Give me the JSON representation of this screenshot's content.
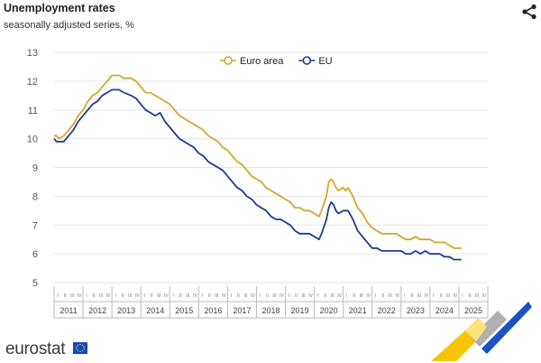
{
  "header": {
    "title": "Unemployment rates",
    "subtitle": "seasonally adjusted series, %"
  },
  "toolbar": {
    "share_icon": "share-icon"
  },
  "footer": {
    "logo_text": "eurostat",
    "flag_icon": "eu-flag-icon"
  },
  "colors": {
    "euro_area": "#d4a82e",
    "eu": "#1f3a93",
    "grid": "#e6e6e6",
    "axis_text": "#555555"
  },
  "chart_data": {
    "type": "line",
    "title": "Unemployment rates",
    "subtitle": "seasonally adjusted series, %",
    "xlabel": "",
    "ylabel": "",
    "ylim": [
      5,
      13
    ],
    "yticks": [
      5,
      6,
      7,
      8,
      9,
      10,
      11,
      12,
      13
    ],
    "grid": true,
    "legend": "top-center",
    "x_years": [
      "2011",
      "2012",
      "2013",
      "2014",
      "2015",
      "2016",
      "2017",
      "2018",
      "2019",
      "2020",
      "2021",
      "2022",
      "2023",
      "2024",
      "2025"
    ],
    "quarter_labels": [
      "I",
      "II",
      "III",
      "IV"
    ],
    "x_start": "2011-01",
    "series": [
      {
        "name": "Euro area",
        "color": "#d4a82e",
        "points": [
          [
            "2011-01",
            10.1
          ],
          [
            "2011-02",
            10.1
          ],
          [
            "2011-03",
            10.0
          ],
          [
            "2011-05",
            10.1
          ],
          [
            "2011-07",
            10.3
          ],
          [
            "2011-09",
            10.5
          ],
          [
            "2011-11",
            10.8
          ],
          [
            "2012-01",
            11.0
          ],
          [
            "2012-03",
            11.3
          ],
          [
            "2012-05",
            11.5
          ],
          [
            "2012-07",
            11.6
          ],
          [
            "2012-09",
            11.8
          ],
          [
            "2012-11",
            12.0
          ],
          [
            "2013-01",
            12.2
          ],
          [
            "2013-04",
            12.2
          ],
          [
            "2013-06",
            12.1
          ],
          [
            "2013-09",
            12.1
          ],
          [
            "2013-11",
            12.0
          ],
          [
            "2014-01",
            11.8
          ],
          [
            "2014-03",
            11.6
          ],
          [
            "2014-05",
            11.6
          ],
          [
            "2014-07",
            11.5
          ],
          [
            "2014-09",
            11.4
          ],
          [
            "2014-11",
            11.3
          ],
          [
            "2015-01",
            11.2
          ],
          [
            "2015-03",
            11.0
          ],
          [
            "2015-05",
            10.8
          ],
          [
            "2015-07",
            10.7
          ],
          [
            "2015-09",
            10.6
          ],
          [
            "2015-11",
            10.5
          ],
          [
            "2016-01",
            10.4
          ],
          [
            "2016-03",
            10.3
          ],
          [
            "2016-05",
            10.1
          ],
          [
            "2016-07",
            10.0
          ],
          [
            "2016-09",
            9.9
          ],
          [
            "2016-11",
            9.7
          ],
          [
            "2017-01",
            9.6
          ],
          [
            "2017-03",
            9.4
          ],
          [
            "2017-05",
            9.2
          ],
          [
            "2017-07",
            9.1
          ],
          [
            "2017-09",
            8.9
          ],
          [
            "2017-11",
            8.7
          ],
          [
            "2018-01",
            8.6
          ],
          [
            "2018-03",
            8.5
          ],
          [
            "2018-05",
            8.3
          ],
          [
            "2018-07",
            8.2
          ],
          [
            "2018-09",
            8.1
          ],
          [
            "2018-11",
            8.0
          ],
          [
            "2019-01",
            7.9
          ],
          [
            "2019-03",
            7.8
          ],
          [
            "2019-05",
            7.6
          ],
          [
            "2019-07",
            7.6
          ],
          [
            "2019-09",
            7.5
          ],
          [
            "2019-11",
            7.5
          ],
          [
            "2020-01",
            7.4
          ],
          [
            "2020-03",
            7.3
          ],
          [
            "2020-04",
            7.5
          ],
          [
            "2020-06",
            8.0
          ],
          [
            "2020-07",
            8.5
          ],
          [
            "2020-08",
            8.6
          ],
          [
            "2020-09",
            8.5
          ],
          [
            "2020-10",
            8.3
          ],
          [
            "2020-11",
            8.2
          ],
          [
            "2021-01",
            8.3
          ],
          [
            "2021-02",
            8.2
          ],
          [
            "2021-03",
            8.3
          ],
          [
            "2021-05",
            8.0
          ],
          [
            "2021-07",
            7.6
          ],
          [
            "2021-09",
            7.4
          ],
          [
            "2021-11",
            7.1
          ],
          [
            "2022-01",
            6.9
          ],
          [
            "2022-03",
            6.8
          ],
          [
            "2022-05",
            6.7
          ],
          [
            "2022-07",
            6.7
          ],
          [
            "2022-09",
            6.7
          ],
          [
            "2022-11",
            6.7
          ],
          [
            "2023-01",
            6.6
          ],
          [
            "2023-03",
            6.5
          ],
          [
            "2023-05",
            6.5
          ],
          [
            "2023-07",
            6.6
          ],
          [
            "2023-09",
            6.5
          ],
          [
            "2023-11",
            6.5
          ],
          [
            "2024-01",
            6.5
          ],
          [
            "2024-03",
            6.4
          ],
          [
            "2024-05",
            6.4
          ],
          [
            "2024-07",
            6.4
          ],
          [
            "2024-09",
            6.3
          ],
          [
            "2024-11",
            6.2
          ],
          [
            "2025-01",
            6.2
          ],
          [
            "2025-02",
            6.2
          ]
        ]
      },
      {
        "name": "EU",
        "color": "#1f3a93",
        "points": [
          [
            "2011-01",
            10.0
          ],
          [
            "2011-02",
            9.9
          ],
          [
            "2011-03",
            9.9
          ],
          [
            "2011-05",
            9.9
          ],
          [
            "2011-07",
            10.1
          ],
          [
            "2011-09",
            10.3
          ],
          [
            "2011-11",
            10.6
          ],
          [
            "2012-01",
            10.8
          ],
          [
            "2012-03",
            11.0
          ],
          [
            "2012-05",
            11.2
          ],
          [
            "2012-07",
            11.3
          ],
          [
            "2012-09",
            11.5
          ],
          [
            "2012-11",
            11.6
          ],
          [
            "2013-01",
            11.7
          ],
          [
            "2013-04",
            11.7
          ],
          [
            "2013-06",
            11.6
          ],
          [
            "2013-09",
            11.5
          ],
          [
            "2013-11",
            11.4
          ],
          [
            "2014-01",
            11.2
          ],
          [
            "2014-03",
            11.0
          ],
          [
            "2014-05",
            10.9
          ],
          [
            "2014-07",
            10.8
          ],
          [
            "2014-09",
            10.9
          ],
          [
            "2014-11",
            10.6
          ],
          [
            "2015-01",
            10.4
          ],
          [
            "2015-03",
            10.2
          ],
          [
            "2015-05",
            10.0
          ],
          [
            "2015-07",
            9.9
          ],
          [
            "2015-09",
            9.8
          ],
          [
            "2015-11",
            9.7
          ],
          [
            "2016-01",
            9.5
          ],
          [
            "2016-03",
            9.4
          ],
          [
            "2016-05",
            9.2
          ],
          [
            "2016-07",
            9.1
          ],
          [
            "2016-09",
            9.0
          ],
          [
            "2016-11",
            8.9
          ],
          [
            "2017-01",
            8.7
          ],
          [
            "2017-03",
            8.5
          ],
          [
            "2017-05",
            8.3
          ],
          [
            "2017-07",
            8.2
          ],
          [
            "2017-09",
            8.0
          ],
          [
            "2017-11",
            7.9
          ],
          [
            "2018-01",
            7.7
          ],
          [
            "2018-03",
            7.6
          ],
          [
            "2018-05",
            7.5
          ],
          [
            "2018-07",
            7.3
          ],
          [
            "2018-09",
            7.2
          ],
          [
            "2018-11",
            7.2
          ],
          [
            "2019-01",
            7.1
          ],
          [
            "2019-03",
            7.0
          ],
          [
            "2019-05",
            6.8
          ],
          [
            "2019-07",
            6.7
          ],
          [
            "2019-09",
            6.7
          ],
          [
            "2019-11",
            6.7
          ],
          [
            "2020-01",
            6.6
          ],
          [
            "2020-03",
            6.5
          ],
          [
            "2020-04",
            6.7
          ],
          [
            "2020-06",
            7.2
          ],
          [
            "2020-07",
            7.6
          ],
          [
            "2020-08",
            7.8
          ],
          [
            "2020-09",
            7.7
          ],
          [
            "2020-10",
            7.5
          ],
          [
            "2020-11",
            7.4
          ],
          [
            "2021-01",
            7.5
          ],
          [
            "2021-02",
            7.5
          ],
          [
            "2021-03",
            7.5
          ],
          [
            "2021-05",
            7.2
          ],
          [
            "2021-07",
            6.8
          ],
          [
            "2021-09",
            6.6
          ],
          [
            "2021-11",
            6.4
          ],
          [
            "2022-01",
            6.2
          ],
          [
            "2022-03",
            6.2
          ],
          [
            "2022-05",
            6.1
          ],
          [
            "2022-07",
            6.1
          ],
          [
            "2022-09",
            6.1
          ],
          [
            "2022-11",
            6.1
          ],
          [
            "2023-01",
            6.1
          ],
          [
            "2023-03",
            6.0
          ],
          [
            "2023-05",
            6.0
          ],
          [
            "2023-07",
            6.1
          ],
          [
            "2023-09",
            6.0
          ],
          [
            "2023-11",
            6.1
          ],
          [
            "2024-01",
            6.0
          ],
          [
            "2024-03",
            6.0
          ],
          [
            "2024-05",
            6.0
          ],
          [
            "2024-07",
            5.9
          ],
          [
            "2024-09",
            5.9
          ],
          [
            "2024-11",
            5.8
          ],
          [
            "2025-01",
            5.8
          ],
          [
            "2025-02",
            5.8
          ]
        ]
      }
    ]
  }
}
